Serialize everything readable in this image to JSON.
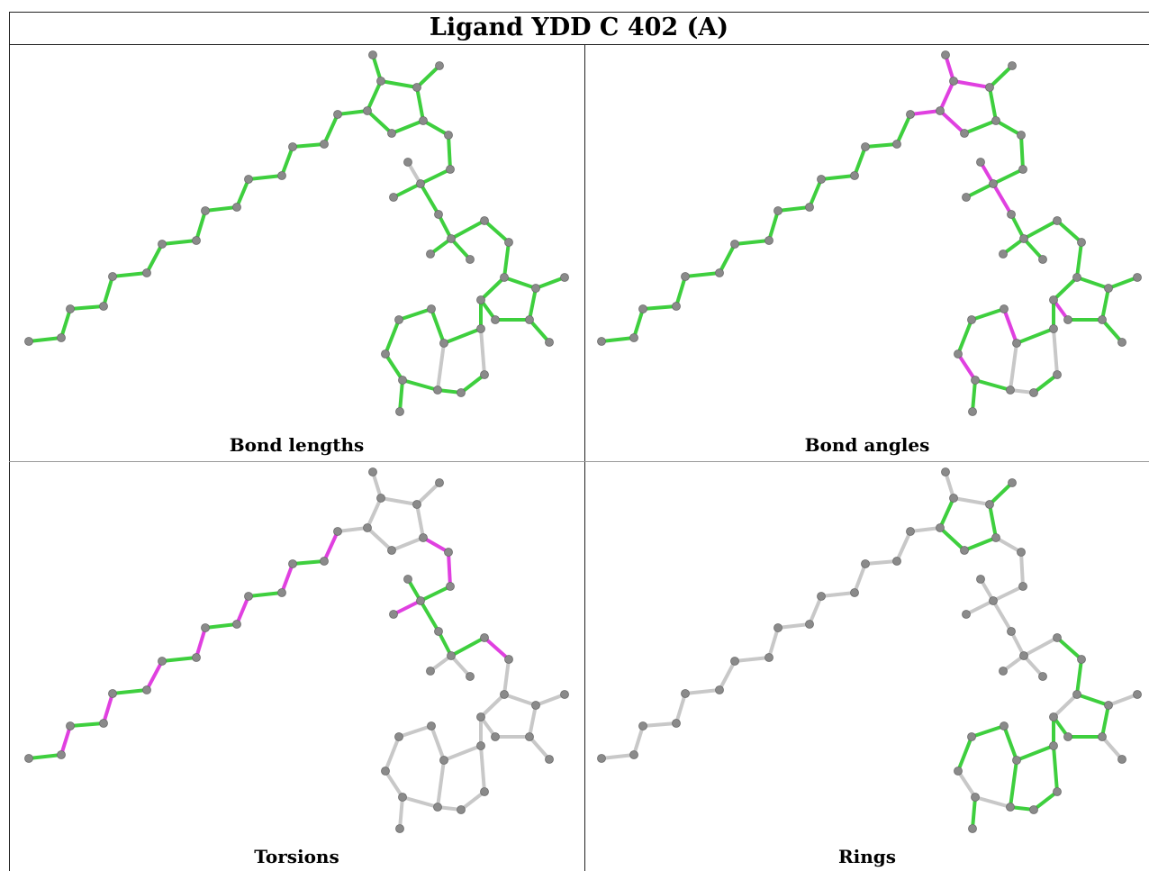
{
  "title": "Ligand YDD C 402 (A)",
  "panels": [
    {
      "id": "bond-lengths",
      "label": "Bond lengths"
    },
    {
      "id": "bond-angles",
      "label": "Bond angles"
    },
    {
      "id": "torsions",
      "label": "Torsions"
    },
    {
      "id": "rings",
      "label": "Rings"
    }
  ],
  "colors": {
    "ok": "#3ecf3e",
    "outlier": "#e040e0",
    "neutral": "#c8c8c8",
    "atom": "#8a8a8a"
  }
}
